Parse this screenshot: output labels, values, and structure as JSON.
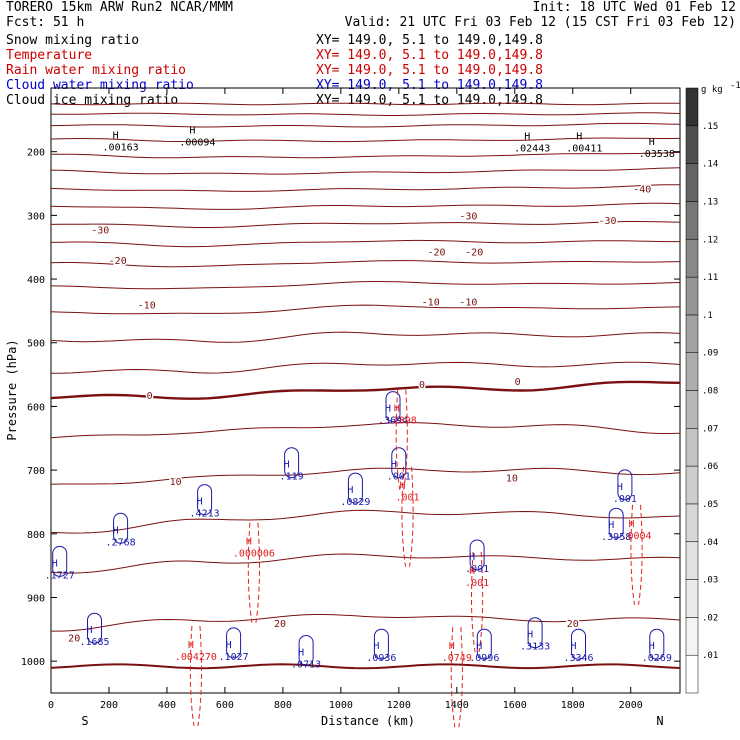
{
  "header": {
    "line1_left": "TORERO  15km ARW   Run2    NCAR/MMM",
    "line1_right": "Init: 18 UTC Wed 01 Feb 12",
    "line2_left": "Fcst:    51 h",
    "line2_right": "Valid: 21 UTC Fri 03 Feb 12 (15 CST Fri 03 Feb 12)",
    "fields": [
      {
        "name": "Snow mixing ratio",
        "xy": "XY= 149.0,  5.1 to 149.0,149.8",
        "color": "#000000"
      },
      {
        "name": "Temperature",
        "xy": "XY= 149.0,  5.1 to 149.0,149.8",
        "color": "#cc0000"
      },
      {
        "name": "Rain water mixing ratio",
        "xy": "XY= 149.0,  5.1 to 149.0,149.8",
        "color": "#cc0000"
      },
      {
        "name": "Cloud water mixing ratio",
        "xy": "XY= 149.0,  5.1 to 149.0,149.8",
        "color": "#0000cc"
      },
      {
        "name": "Cloud ice mixing ratio",
        "xy": "XY= 149.0,  5.1 to 149.0,149.8",
        "color": "#000000"
      }
    ]
  },
  "colors": {
    "temperature": "#7a1010",
    "rain": "#e02020",
    "cloud_water": "#1a1aaa",
    "axis": "#000000"
  },
  "chart_data": {
    "type": "contour",
    "xlabel": "Distance (km)",
    "ylabel": "Pressure (hPa)",
    "xlim": [
      0,
      2170
    ],
    "ylim": [
      1050,
      100
    ],
    "xticks": [
      0,
      200,
      400,
      600,
      800,
      1000,
      1200,
      1400,
      1600,
      1800,
      2000
    ],
    "yticks": [
      200,
      300,
      400,
      500,
      600,
      700,
      800,
      900,
      1000
    ],
    "x_end_labels": {
      "left": "S",
      "right": "N"
    },
    "temperature_contour_labels": [
      {
        "x": 170,
        "p": 322,
        "text": "-30"
      },
      {
        "x": 1440,
        "p": 300,
        "text": "-30"
      },
      {
        "x": 1920,
        "p": 307,
        "text": "-30"
      },
      {
        "x": 2040,
        "p": 258,
        "text": "-40"
      },
      {
        "x": 230,
        "p": 370,
        "text": "-20"
      },
      {
        "x": 1330,
        "p": 357,
        "text": "-20"
      },
      {
        "x": 1460,
        "p": 357,
        "text": "-20"
      },
      {
        "x": 330,
        "p": 440,
        "text": "-10"
      },
      {
        "x": 1310,
        "p": 435,
        "text": "-10"
      },
      {
        "x": 1440,
        "p": 435,
        "text": "-10"
      },
      {
        "x": 340,
        "p": 582,
        "text": "0"
      },
      {
        "x": 1280,
        "p": 565,
        "text": "0"
      },
      {
        "x": 1610,
        "p": 560,
        "text": "0"
      },
      {
        "x": 430,
        "p": 717,
        "text": "10"
      },
      {
        "x": 1590,
        "p": 712,
        "text": "10"
      },
      {
        "x": 790,
        "p": 940,
        "text": "20"
      },
      {
        "x": 80,
        "p": 963,
        "text": "20"
      },
      {
        "x": 1800,
        "p": 940,
        "text": "20"
      }
    ],
    "temperature_levels_p": [
      [
        125,
        125,
        125,
        125,
        125
      ],
      [
        140,
        141,
        142,
        141,
        140
      ],
      [
        158,
        160,
        160,
        158,
        156
      ],
      [
        180,
        183,
        183,
        181,
        178
      ],
      [
        205,
        209,
        208,
        205,
        201
      ],
      [
        230,
        235,
        233,
        230,
        226
      ],
      [
        258,
        262,
        259,
        257,
        253
      ],
      [
        285,
        290,
        285,
        285,
        282
      ],
      [
        313,
        318,
        312,
        313,
        310
      ],
      [
        342,
        348,
        340,
        342,
        340
      ],
      [
        375,
        380,
        372,
        374,
        372
      ],
      [
        412,
        415,
        405,
        408,
        406
      ],
      [
        452,
        455,
        442,
        446,
        445
      ],
      [
        495,
        498,
        485,
        488,
        487
      ],
      [
        545,
        545,
        532,
        535,
        533
      ],
      [
        585,
        585,
        572,
        572,
        560
      ],
      [
        650,
        640,
        628,
        630,
        640
      ],
      [
        725,
        712,
        700,
        700,
        705
      ],
      [
        800,
        780,
        766,
        768,
        775
      ],
      [
        860,
        845,
        834,
        838,
        840
      ],
      [
        950,
        935,
        928,
        935,
        935
      ],
      [
        1008,
        1008,
        1008,
        1008,
        1008
      ]
    ],
    "temperature_x_nodes": [
      0,
      500,
      1100,
      1650,
      2170
    ],
    "temperature_freezing_level_index": 15,
    "high_labels": [
      {
        "x": 240,
        "p": 198,
        "text": ".00163",
        "field": "snow"
      },
      {
        "x": 505,
        "p": 190,
        "text": ".00094",
        "field": "snow"
      },
      {
        "x": 1660,
        "p": 200,
        "text": ".02443",
        "field": "snow"
      },
      {
        "x": 1840,
        "p": 200,
        "text": ".00411",
        "field": "snow"
      },
      {
        "x": 2090,
        "p": 208,
        "text": ".03538",
        "field": "snow"
      },
      {
        "x": 1180,
        "p": 627,
        "text": ".3694",
        "field": "cloud_water"
      },
      {
        "x": 1210,
        "p": 627,
        "text": ".1898",
        "field": "rain"
      },
      {
        "x": 830,
        "p": 715,
        "text": ".119",
        "field": "cloud_water"
      },
      {
        "x": 1050,
        "p": 755,
        "text": ".0829",
        "field": "cloud_water"
      },
      {
        "x": 1200,
        "p": 715,
        "text": ".001",
        "field": "cloud_water"
      },
      {
        "x": 1230,
        "p": 748,
        "text": ".001",
        "field": "rain"
      },
      {
        "x": 530,
        "p": 773,
        "text": ".4213",
        "field": "cloud_water"
      },
      {
        "x": 240,
        "p": 818,
        "text": ".2768",
        "field": "cloud_water"
      },
      {
        "x": 700,
        "p": 836,
        "text": ".000006",
        "field": "rain"
      },
      {
        "x": 30,
        "p": 870,
        "text": ".1727",
        "field": "cloud_water"
      },
      {
        "x": 1470,
        "p": 860,
        "text": ".001",
        "field": "cloud_water"
      },
      {
        "x": 1470,
        "p": 882,
        "text": ".001",
        "field": "rain"
      },
      {
        "x": 1950,
        "p": 810,
        "text": ".3958",
        "field": "cloud_water"
      },
      {
        "x": 2020,
        "p": 808,
        "text": ".0004",
        "field": "rain"
      },
      {
        "x": 1980,
        "p": 750,
        "text": ".001",
        "field": "cloud_water"
      },
      {
        "x": 150,
        "p": 975,
        "text": ".1685",
        "field": "cloud_water"
      },
      {
        "x": 500,
        "p": 998,
        "text": ".004270",
        "field": "rain"
      },
      {
        "x": 630,
        "p": 998,
        "text": ".1027",
        "field": "cloud_water"
      },
      {
        "x": 880,
        "p": 1010,
        "text": ".0713",
        "field": "cloud_water"
      },
      {
        "x": 1140,
        "p": 1000,
        "text": ".0936",
        "field": "cloud_water"
      },
      {
        "x": 1400,
        "p": 1000,
        "text": ".0749",
        "field": "rain"
      },
      {
        "x": 1495,
        "p": 1000,
        "text": ".0996",
        "field": "cloud_water"
      },
      {
        "x": 1670,
        "p": 982,
        "text": ".3133",
        "field": "cloud_water"
      },
      {
        "x": 1820,
        "p": 1000,
        "text": ".3346",
        "field": "cloud_water"
      },
      {
        "x": 2090,
        "p": 1000,
        "text": ".0269",
        "field": "cloud_water"
      }
    ],
    "colorbar": {
      "unit": "g kg",
      "unit_exponent": "-1",
      "levels": [
        ".01",
        ".02",
        ".03",
        ".04",
        ".05",
        ".06",
        ".07",
        ".08",
        ".09",
        ".1",
        ".11",
        ".12",
        ".13",
        ".14",
        ".15"
      ],
      "colors": [
        "#ffffff",
        "#f4f4f4",
        "#ebebeb",
        "#e1e1e1",
        "#d7d7d7",
        "#cdcdcd",
        "#c3c3c3",
        "#b8b8b8",
        "#adadad",
        "#a2a2a2",
        "#969696",
        "#888888",
        "#777777",
        "#646464",
        "#505050",
        "#333333"
      ]
    }
  }
}
